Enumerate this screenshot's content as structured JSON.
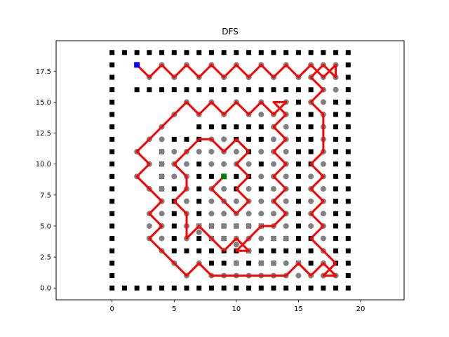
{
  "chart_data": {
    "type": "scatter",
    "title": "DFS",
    "xlabel": "",
    "ylabel": "",
    "xlim": [
      -4.5,
      23.5
    ],
    "ylim": [
      -0.95,
      19.95
    ],
    "xticks": [
      0,
      5,
      10,
      15,
      20
    ],
    "yticks": [
      0.0,
      2.5,
      5.0,
      7.5,
      10.0,
      12.5,
      15.0,
      17.5
    ],
    "xtick_labels": [
      "0",
      "5",
      "10",
      "15",
      "20"
    ],
    "ytick_labels": [
      "0.0",
      "2.5",
      "5.0",
      "7.5",
      "10.0",
      "12.5",
      "15.0",
      "17.5"
    ],
    "grid": false,
    "legend": "none",
    "colors": {
      "walls": "#000000",
      "visited": "#808080",
      "path": "#ff0000",
      "start": "#0000ff",
      "goal": "#008000"
    },
    "start": [
      2,
      18
    ],
    "goal": [
      9,
      9
    ],
    "walls": [
      [
        0,
        0
      ],
      [
        1,
        0
      ],
      [
        2,
        0
      ],
      [
        3,
        0
      ],
      [
        4,
        0
      ],
      [
        5,
        0
      ],
      [
        6,
        0
      ],
      [
        7,
        0
      ],
      [
        8,
        0
      ],
      [
        9,
        0
      ],
      [
        10,
        0
      ],
      [
        11,
        0
      ],
      [
        12,
        0
      ],
      [
        13,
        0
      ],
      [
        14,
        0
      ],
      [
        15,
        0
      ],
      [
        16,
        0
      ],
      [
        17,
        0
      ],
      [
        18,
        0
      ],
      [
        19,
        0
      ],
      [
        0,
        19
      ],
      [
        1,
        19
      ],
      [
        2,
        19
      ],
      [
        3,
        19
      ],
      [
        4,
        19
      ],
      [
        5,
        19
      ],
      [
        6,
        19
      ],
      [
        7,
        19
      ],
      [
        8,
        19
      ],
      [
        9,
        19
      ],
      [
        10,
        19
      ],
      [
        11,
        19
      ],
      [
        12,
        19
      ],
      [
        13,
        19
      ],
      [
        14,
        19
      ],
      [
        15,
        19
      ],
      [
        16,
        19
      ],
      [
        17,
        19
      ],
      [
        18,
        19
      ],
      [
        19,
        19
      ],
      [
        0,
        1
      ],
      [
        0,
        2
      ],
      [
        0,
        3
      ],
      [
        0,
        4
      ],
      [
        0,
        5
      ],
      [
        0,
        6
      ],
      [
        0,
        7
      ],
      [
        0,
        8
      ],
      [
        0,
        9
      ],
      [
        0,
        10
      ],
      [
        0,
        11
      ],
      [
        0,
        12
      ],
      [
        0,
        13
      ],
      [
        0,
        14
      ],
      [
        0,
        15
      ],
      [
        0,
        16
      ],
      [
        0,
        17
      ],
      [
        0,
        18
      ],
      [
        19,
        1
      ],
      [
        19,
        2
      ],
      [
        19,
        3
      ],
      [
        19,
        4
      ],
      [
        19,
        5
      ],
      [
        19,
        6
      ],
      [
        19,
        7
      ],
      [
        19,
        8
      ],
      [
        19,
        9
      ],
      [
        19,
        10
      ],
      [
        19,
        11
      ],
      [
        19,
        12
      ],
      [
        19,
        13
      ],
      [
        19,
        14
      ],
      [
        19,
        15
      ],
      [
        19,
        16
      ],
      [
        19,
        17
      ],
      [
        19,
        18
      ],
      [
        2,
        16
      ],
      [
        3,
        16
      ],
      [
        4,
        16
      ],
      [
        5,
        16
      ],
      [
        6,
        16
      ],
      [
        7,
        16
      ],
      [
        8,
        16
      ],
      [
        9,
        16
      ],
      [
        10,
        16
      ],
      [
        11,
        16
      ],
      [
        12,
        16
      ],
      [
        13,
        16
      ],
      [
        14,
        16
      ],
      [
        15,
        16
      ],
      [
        16,
        16
      ],
      [
        15,
        15
      ],
      [
        15,
        14
      ],
      [
        15,
        13
      ],
      [
        15,
        12
      ],
      [
        15,
        11
      ],
      [
        15,
        10
      ],
      [
        15,
        9
      ],
      [
        15,
        8
      ],
      [
        15,
        7
      ],
      [
        15,
        6
      ],
      [
        15,
        5
      ],
      [
        16,
        14
      ],
      [
        16,
        13
      ],
      [
        16,
        12
      ],
      [
        16,
        11
      ],
      [
        16,
        10
      ],
      [
        7,
        13
      ],
      [
        8,
        13
      ],
      [
        9,
        13
      ],
      [
        10,
        13
      ],
      [
        11,
        13
      ],
      [
        12,
        13
      ],
      [
        5,
        12
      ],
      [
        6,
        12
      ],
      [
        7,
        12
      ],
      [
        10,
        12
      ],
      [
        11,
        12
      ],
      [
        12,
        12
      ],
      [
        4,
        11
      ],
      [
        11,
        11
      ],
      [
        4,
        10
      ],
      [
        7,
        10
      ],
      [
        12,
        10
      ],
      [
        4,
        9
      ],
      [
        7,
        9
      ],
      [
        8,
        9
      ],
      [
        10,
        9
      ],
      [
        11,
        9
      ],
      [
        4,
        8
      ],
      [
        5,
        8
      ],
      [
        7,
        8
      ],
      [
        10,
        8
      ],
      [
        12,
        8
      ],
      [
        5,
        7
      ],
      [
        7,
        7
      ],
      [
        5,
        6
      ],
      [
        7,
        6
      ],
      [
        7,
        5
      ],
      [
        8,
        5
      ],
      [
        9,
        5
      ],
      [
        10,
        5
      ],
      [
        11,
        5
      ],
      [
        12,
        5
      ],
      [
        5,
        5
      ],
      [
        15,
        4
      ],
      [
        16,
        4
      ],
      [
        14,
        4
      ],
      [
        13,
        4
      ],
      [
        5,
        4
      ],
      [
        7,
        4
      ],
      [
        8,
        4
      ],
      [
        9,
        4
      ],
      [
        5,
        3
      ],
      [
        6,
        3
      ],
      [
        7,
        3
      ],
      [
        8,
        3
      ],
      [
        9,
        3
      ],
      [
        10,
        3
      ],
      [
        11,
        3
      ],
      [
        12,
        3
      ],
      [
        13,
        3
      ],
      [
        14,
        3
      ],
      [
        8,
        2
      ],
      [
        9,
        2
      ],
      [
        10,
        2
      ],
      [
        11,
        2
      ],
      [
        12,
        2
      ],
      [
        13,
        2
      ],
      [
        15,
        3
      ],
      [
        16,
        3
      ],
      [
        15,
        2
      ],
      [
        16,
        2
      ],
      [
        18,
        15
      ],
      [
        18,
        14
      ],
      [
        18,
        13
      ],
      [
        18,
        12
      ],
      [
        18,
        11
      ],
      [
        18,
        10
      ],
      [
        18,
        9
      ],
      [
        18,
        8
      ],
      [
        18,
        7
      ],
      [
        18,
        6
      ],
      [
        18,
        5
      ],
      [
        18,
        4
      ],
      [
        18,
        3
      ],
      [
        18,
        2
      ]
    ],
    "visited": [
      [
        3,
        17
      ],
      [
        4,
        18
      ],
      [
        5,
        17
      ],
      [
        6,
        18
      ],
      [
        7,
        17
      ],
      [
        8,
        18
      ],
      [
        9,
        17
      ],
      [
        10,
        18
      ],
      [
        11,
        17
      ],
      [
        12,
        18
      ],
      [
        13,
        17
      ],
      [
        14,
        18
      ],
      [
        15,
        17
      ],
      [
        16,
        18
      ],
      [
        17,
        18
      ],
      [
        18,
        18
      ],
      [
        18,
        17
      ],
      [
        17,
        17
      ],
      [
        16,
        17
      ],
      [
        17,
        16
      ],
      [
        18,
        16
      ],
      [
        16,
        15
      ],
      [
        17,
        15
      ],
      [
        17,
        14
      ],
      [
        17,
        13
      ],
      [
        17,
        12
      ],
      [
        17,
        11
      ],
      [
        17,
        10
      ],
      [
        17,
        9
      ],
      [
        17,
        8
      ],
      [
        17,
        7
      ],
      [
        17,
        6
      ],
      [
        17,
        5
      ],
      [
        17,
        4
      ],
      [
        17,
        3
      ],
      [
        17,
        2
      ],
      [
        17,
        1
      ],
      [
        18,
        1
      ],
      [
        16,
        9
      ],
      [
        16,
        8
      ],
      [
        16,
        7
      ],
      [
        16,
        6
      ],
      [
        16,
        5
      ],
      [
        15,
        1
      ],
      [
        16,
        1
      ],
      [
        14,
        1
      ],
      [
        13,
        1
      ],
      [
        12,
        1
      ],
      [
        11,
        1
      ],
      [
        10,
        1
      ],
      [
        9,
        1
      ],
      [
        8,
        1
      ],
      [
        7,
        2
      ],
      [
        6,
        1
      ],
      [
        5,
        2
      ],
      [
        4,
        3
      ],
      [
        3,
        4
      ],
      [
        3,
        5
      ],
      [
        3,
        6
      ],
      [
        4,
        7
      ],
      [
        3,
        8
      ],
      [
        2,
        9
      ],
      [
        3,
        10
      ],
      [
        2,
        11
      ],
      [
        3,
        12
      ],
      [
        4,
        13
      ],
      [
        5,
        14
      ],
      [
        6,
        15
      ],
      [
        7,
        14
      ],
      [
        8,
        15
      ],
      [
        9,
        14
      ],
      [
        10,
        15
      ],
      [
        11,
        14
      ],
      [
        12,
        15
      ],
      [
        13,
        14
      ],
      [
        14,
        15
      ],
      [
        13,
        13
      ],
      [
        14,
        14
      ],
      [
        12,
        14
      ],
      [
        14,
        13
      ],
      [
        14,
        12
      ],
      [
        14,
        11
      ],
      [
        14,
        10
      ],
      [
        14,
        9
      ],
      [
        14,
        8
      ],
      [
        14,
        7
      ],
      [
        14,
        6
      ],
      [
        14,
        5
      ],
      [
        13,
        12
      ],
      [
        13,
        11
      ],
      [
        13,
        10
      ],
      [
        13,
        9
      ],
      [
        13,
        8
      ],
      [
        13,
        7
      ],
      [
        13,
        6
      ],
      [
        13,
        5
      ],
      [
        12,
        11
      ],
      [
        12,
        9
      ],
      [
        12,
        7
      ],
      [
        12,
        6
      ],
      [
        11,
        10
      ],
      [
        11,
        8
      ],
      [
        11,
        7
      ],
      [
        11,
        6
      ],
      [
        10,
        11
      ],
      [
        10,
        10
      ],
      [
        10,
        7
      ],
      [
        10,
        6
      ],
      [
        9,
        12
      ],
      [
        9,
        11
      ],
      [
        9,
        10
      ],
      [
        9,
        8
      ],
      [
        9,
        7
      ],
      [
        9,
        6
      ],
      [
        8,
        12
      ],
      [
        8,
        11
      ],
      [
        8,
        10
      ],
      [
        8,
        8
      ],
      [
        8,
        7
      ],
      [
        8,
        6
      ],
      [
        7,
        11
      ],
      [
        6,
        11
      ],
      [
        6,
        10
      ],
      [
        5,
        11
      ],
      [
        5,
        10
      ],
      [
        5,
        9
      ],
      [
        6,
        9
      ],
      [
        6,
        8
      ],
      [
        6,
        7
      ],
      [
        6,
        6
      ],
      [
        6,
        5
      ],
      [
        6,
        4
      ],
      [
        7,
        4.5
      ],
      [
        8,
        4
      ],
      [
        9,
        4
      ],
      [
        10,
        4
      ],
      [
        11,
        4
      ],
      [
        12,
        4
      ],
      [
        10,
        3.5
      ],
      [
        11,
        3
      ],
      [
        10,
        2
      ],
      [
        12,
        2
      ],
      [
        13,
        2
      ],
      [
        14,
        2
      ],
      [
        15,
        2
      ],
      [
        14,
        4
      ],
      [
        13,
        4
      ],
      [
        12,
        5
      ],
      [
        11,
        5
      ],
      [
        10,
        5
      ],
      [
        9,
        5
      ],
      [
        8,
        5
      ],
      [
        7,
        5
      ],
      [
        4,
        4
      ],
      [
        4,
        5
      ],
      [
        4,
        6
      ],
      [
        4,
        7
      ],
      [
        4,
        8
      ],
      [
        4,
        9
      ],
      [
        4,
        10
      ],
      [
        4,
        11
      ],
      [
        4,
        12
      ]
    ],
    "path": [
      [
        2,
        18
      ],
      [
        3,
        17
      ],
      [
        4,
        18
      ],
      [
        5,
        17
      ],
      [
        6,
        18
      ],
      [
        7,
        17
      ],
      [
        8,
        18
      ],
      [
        9,
        17
      ],
      [
        10,
        18
      ],
      [
        11,
        17
      ],
      [
        12,
        18
      ],
      [
        13,
        17
      ],
      [
        14,
        18
      ],
      [
        15,
        17
      ],
      [
        16,
        18
      ],
      [
        17,
        17
      ],
      [
        18,
        18
      ],
      [
        18,
        17
      ],
      [
        17,
        18
      ],
      [
        16,
        17
      ],
      [
        17,
        16
      ],
      [
        16,
        15
      ],
      [
        17,
        14
      ],
      [
        17,
        13
      ],
      [
        17,
        12
      ],
      [
        17,
        11
      ],
      [
        16,
        10
      ],
      [
        17,
        9
      ],
      [
        16,
        8
      ],
      [
        17,
        7
      ],
      [
        16,
        6
      ],
      [
        17,
        5
      ],
      [
        16,
        4
      ],
      [
        17,
        3
      ],
      [
        18,
        2
      ],
      [
        17,
        1
      ],
      [
        18,
        1
      ],
      [
        17,
        2
      ],
      [
        16,
        1
      ],
      [
        15,
        2
      ],
      [
        14,
        1
      ],
      [
        13,
        1
      ],
      [
        12,
        1
      ],
      [
        11,
        1
      ],
      [
        10,
        1
      ],
      [
        9,
        1
      ],
      [
        8,
        1
      ],
      [
        7,
        2
      ],
      [
        6,
        1
      ],
      [
        5,
        2
      ],
      [
        4,
        3
      ],
      [
        3,
        4
      ],
      [
        4,
        5
      ],
      [
        3,
        6
      ],
      [
        4,
        7
      ],
      [
        3,
        8
      ],
      [
        2,
        9
      ],
      [
        3,
        10
      ],
      [
        2,
        11
      ],
      [
        3,
        12
      ],
      [
        4,
        13
      ],
      [
        5,
        14
      ],
      [
        6,
        15
      ],
      [
        7,
        14
      ],
      [
        8,
        15
      ],
      [
        9,
        14
      ],
      [
        10,
        15
      ],
      [
        11,
        14
      ],
      [
        12,
        15
      ],
      [
        13,
        14
      ],
      [
        14,
        15
      ],
      [
        13,
        15
      ],
      [
        14,
        14
      ],
      [
        13,
        13
      ],
      [
        14,
        12
      ],
      [
        13,
        11
      ],
      [
        14,
        10
      ],
      [
        13,
        9
      ],
      [
        14,
        8
      ],
      [
        13,
        7
      ],
      [
        14,
        6
      ],
      [
        13,
        5
      ],
      [
        12,
        5
      ],
      [
        11,
        4
      ],
      [
        10,
        3
      ],
      [
        11,
        3
      ],
      [
        10,
        4
      ],
      [
        9,
        3
      ],
      [
        8,
        4
      ],
      [
        7,
        5
      ],
      [
        6,
        4
      ],
      [
        6,
        5
      ],
      [
        6,
        6
      ],
      [
        5,
        7
      ],
      [
        6,
        8
      ],
      [
        6,
        9
      ],
      [
        5,
        10
      ],
      [
        6,
        11
      ],
      [
        7,
        12
      ],
      [
        8,
        12
      ],
      [
        9,
        11
      ],
      [
        10,
        12
      ],
      [
        11,
        11
      ],
      [
        10,
        10
      ],
      [
        11,
        9
      ],
      [
        10,
        8
      ],
      [
        11,
        7
      ],
      [
        10,
        6
      ],
      [
        9,
        7
      ],
      [
        8,
        8
      ],
      [
        9,
        9
      ]
    ]
  }
}
